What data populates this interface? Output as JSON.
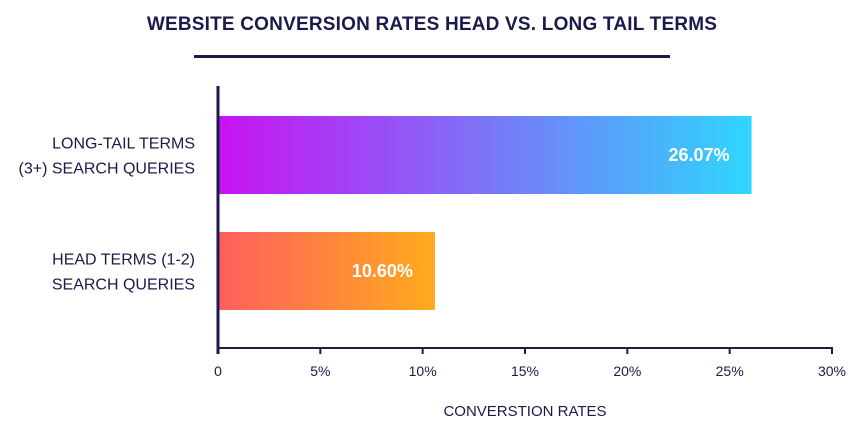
{
  "chart_data": {
    "type": "bar",
    "orientation": "horizontal",
    "title": "WEBSITE CONVERSION RATES HEAD VS. LONG TAIL TERMS",
    "xlabel": "CONVERSTION RATES",
    "ylabel": "",
    "categories": [
      [
        "LONG-TAIL TERMS",
        "(3+) SEARCH QUERIES"
      ],
      [
        "HEAD TERMS (1-2)",
        "SEARCH QUERIES"
      ]
    ],
    "values": [
      26.07,
      10.6
    ],
    "value_labels": [
      "26.07%",
      "10.60%"
    ],
    "xlim": [
      0,
      30
    ],
    "xticks": [
      0,
      5,
      10,
      15,
      20,
      25,
      30
    ],
    "xtick_labels": [
      "0",
      "5%",
      "10%",
      "15%",
      "20%",
      "25%",
      "30%"
    ],
    "grid": false,
    "legend": "none",
    "bar_gradients": [
      [
        "#c812f2",
        "#2fd6fd"
      ],
      [
        "#ff5f5f",
        "#ffab1c"
      ]
    ],
    "axis_color": "#1b1a4a"
  }
}
